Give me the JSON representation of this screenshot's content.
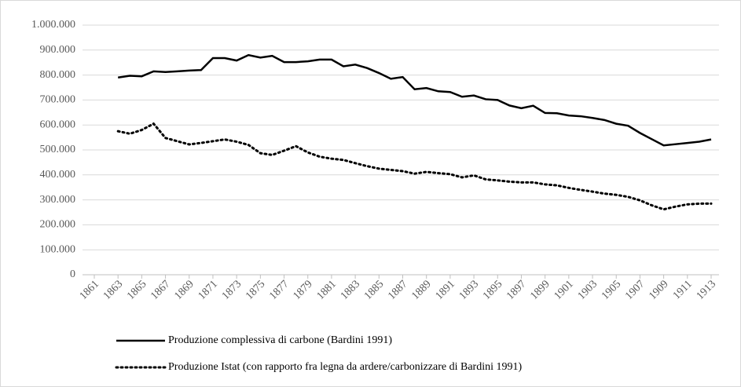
{
  "chart_data": {
    "type": "line",
    "x": [
      1863,
      1864,
      1865,
      1866,
      1867,
      1868,
      1869,
      1870,
      1871,
      1872,
      1873,
      1874,
      1875,
      1876,
      1877,
      1878,
      1879,
      1880,
      1881,
      1882,
      1883,
      1884,
      1885,
      1886,
      1887,
      1888,
      1889,
      1890,
      1891,
      1892,
      1893,
      1894,
      1895,
      1896,
      1897,
      1898,
      1899,
      1900,
      1901,
      1902,
      1903,
      1904,
      1905,
      1906,
      1907,
      1908,
      1909,
      1910,
      1911,
      1912,
      1913
    ],
    "series": [
      {
        "name": "Produzione complessiva di carbone (Bardini 1991)",
        "color": "#000000",
        "line_style": "solid",
        "values": [
          790000,
          797000,
          795000,
          815000,
          812000,
          815000,
          818000,
          820000,
          868000,
          868000,
          858000,
          880000,
          870000,
          877000,
          852000,
          852000,
          855000,
          862000,
          862000,
          835000,
          842000,
          828000,
          808000,
          785000,
          792000,
          743000,
          748000,
          735000,
          732000,
          713000,
          718000,
          703000,
          700000,
          678000,
          667000,
          677000,
          648000,
          647000,
          638000,
          635000,
          628000,
          620000,
          605000,
          597000,
          568000,
          543000,
          518000,
          523000,
          528000,
          533000,
          542000
        ]
      },
      {
        "name": "Produzione Istat (con rapporto fra legna da ardere/carbonizzare di Bardini 1991)",
        "color": "#000000",
        "line_style": "dotted",
        "values": [
          575000,
          565000,
          580000,
          605000,
          548000,
          535000,
          522000,
          528000,
          535000,
          542000,
          533000,
          520000,
          487000,
          480000,
          497000,
          515000,
          490000,
          473000,
          465000,
          460000,
          447000,
          435000,
          425000,
          420000,
          415000,
          405000,
          412000,
          407000,
          403000,
          390000,
          398000,
          382000,
          378000,
          373000,
          370000,
          370000,
          362000,
          358000,
          348000,
          340000,
          333000,
          325000,
          320000,
          312000,
          298000,
          278000,
          262000,
          273000,
          282000,
          285000,
          285000
        ]
      }
    ],
    "xlim": [
      1861,
      1913
    ],
    "xticks": [
      1861,
      1863,
      1865,
      1867,
      1869,
      1871,
      1873,
      1875,
      1877,
      1879,
      1881,
      1883,
      1885,
      1887,
      1889,
      1891,
      1893,
      1895,
      1897,
      1899,
      1901,
      1903,
      1905,
      1907,
      1909,
      1911,
      1913
    ],
    "ylim": [
      0,
      1000000
    ],
    "yticks": [
      0,
      {
        "value": 100000,
        "label": "100.000"
      },
      {
        "value": 200000,
        "label": "200.000"
      },
      {
        "value": 300000,
        "label": "300.000"
      },
      {
        "value": 400000,
        "label": "400.000"
      },
      {
        "value": 500000,
        "label": "500.000"
      },
      {
        "value": 600000,
        "label": "600.000"
      },
      {
        "value": 700000,
        "label": "700.000"
      },
      {
        "value": 800000,
        "label": "800.000"
      },
      {
        "value": 900000,
        "label": "900.000"
      },
      {
        "value": 1000000,
        "label": "1.000.000"
      }
    ],
    "grid": true,
    "legend": "bottom"
  }
}
